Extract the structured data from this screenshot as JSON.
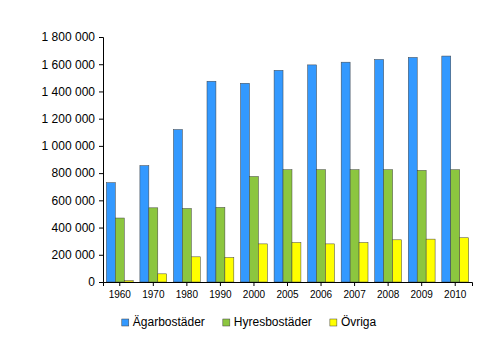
{
  "chart_data": {
    "type": "bar",
    "categories": [
      "1960",
      "1970",
      "1980",
      "1990",
      "2000",
      "2005",
      "2006",
      "2007",
      "2008",
      "2009",
      "2010"
    ],
    "series": [
      {
        "name": "Ägarbostäder",
        "color": "#3399ff",
        "values": [
          730000,
          855000,
          1120000,
          1475000,
          1460000,
          1555000,
          1595000,
          1615000,
          1635000,
          1650000,
          1660000
        ]
      },
      {
        "name": "Hyresbostäder",
        "color": "#8cc63f",
        "values": [
          470000,
          545000,
          540000,
          548000,
          775000,
          825000,
          825000,
          825000,
          825000,
          820000,
          825000
        ]
      },
      {
        "name": "Övriga",
        "color": "#ffff00",
        "values": [
          10000,
          60000,
          185000,
          180000,
          280000,
          290000,
          280000,
          290000,
          310000,
          315000,
          325000
        ]
      }
    ],
    "ylim": [
      0,
      1800000
    ],
    "yticks": [
      0,
      {
        "value": 200000,
        "label": "200 000"
      },
      {
        "value": 400000,
        "label": "400 000"
      },
      {
        "value": 600000,
        "label": "600 000"
      },
      {
        "value": 800000,
        "label": "800 000"
      },
      {
        "value": 1000000,
        "label": "1 000 000"
      },
      {
        "value": 1200000,
        "label": "1 200 000"
      },
      {
        "value": 1400000,
        "label": "1 400 000"
      },
      {
        "value": 1600000,
        "label": "1 600 000"
      },
      {
        "value": 1800000,
        "label": "1 800 000"
      }
    ],
    "grid": false,
    "legend": "bottom"
  }
}
